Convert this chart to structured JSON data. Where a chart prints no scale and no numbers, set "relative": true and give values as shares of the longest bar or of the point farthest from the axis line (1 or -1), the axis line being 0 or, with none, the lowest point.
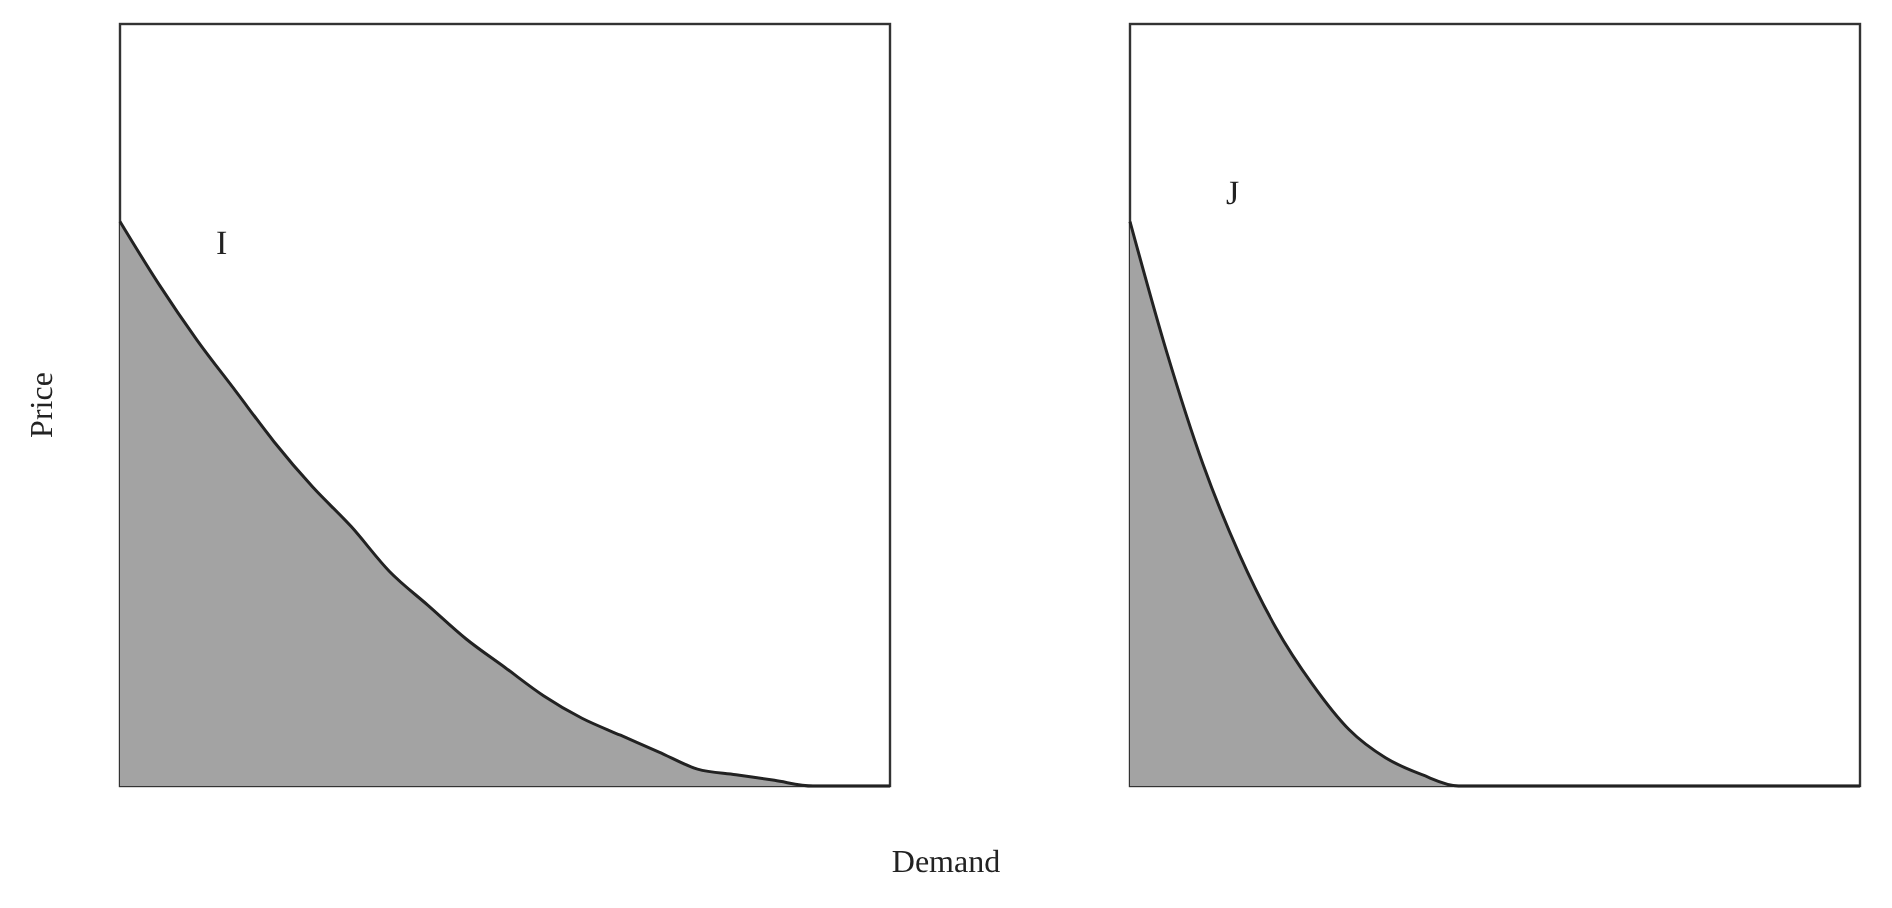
{
  "chart_data": [
    {
      "type": "area",
      "relative": true,
      "ylabel": "Price",
      "xlabel": "Demand",
      "annotations": [
        "I"
      ],
      "color": "#a3a3a3",
      "categories": [
        null,
        null,
        null,
        null,
        null,
        null,
        null,
        null,
        null,
        null,
        null,
        null,
        null,
        null,
        null,
        null,
        null,
        null,
        null,
        null,
        null
      ],
      "values": [
        1,
        0.89,
        0.79,
        0.7,
        0.61,
        0.53,
        0.46,
        0.38,
        0.32,
        0.26,
        0.21,
        0.16,
        0.12,
        0.09,
        0.06,
        0.03,
        0.02,
        0.01,
        0,
        0,
        0
      ]
    },
    {
      "type": "area",
      "relative": true,
      "annotations": [
        "J"
      ],
      "color": "#a3a3a3",
      "categories": [
        null,
        null,
        null,
        null,
        null,
        null,
        null,
        null,
        null,
        null,
        null,
        null,
        null,
        null,
        null,
        null,
        null,
        null,
        null,
        null,
        null
      ],
      "values": [
        1,
        0.77,
        0.57,
        0.41,
        0.28,
        0.18,
        0.1,
        0.05,
        0.02,
        0,
        0,
        0,
        0,
        0,
        0,
        0,
        0,
        0,
        0,
        0,
        0
      ]
    }
  ]
}
